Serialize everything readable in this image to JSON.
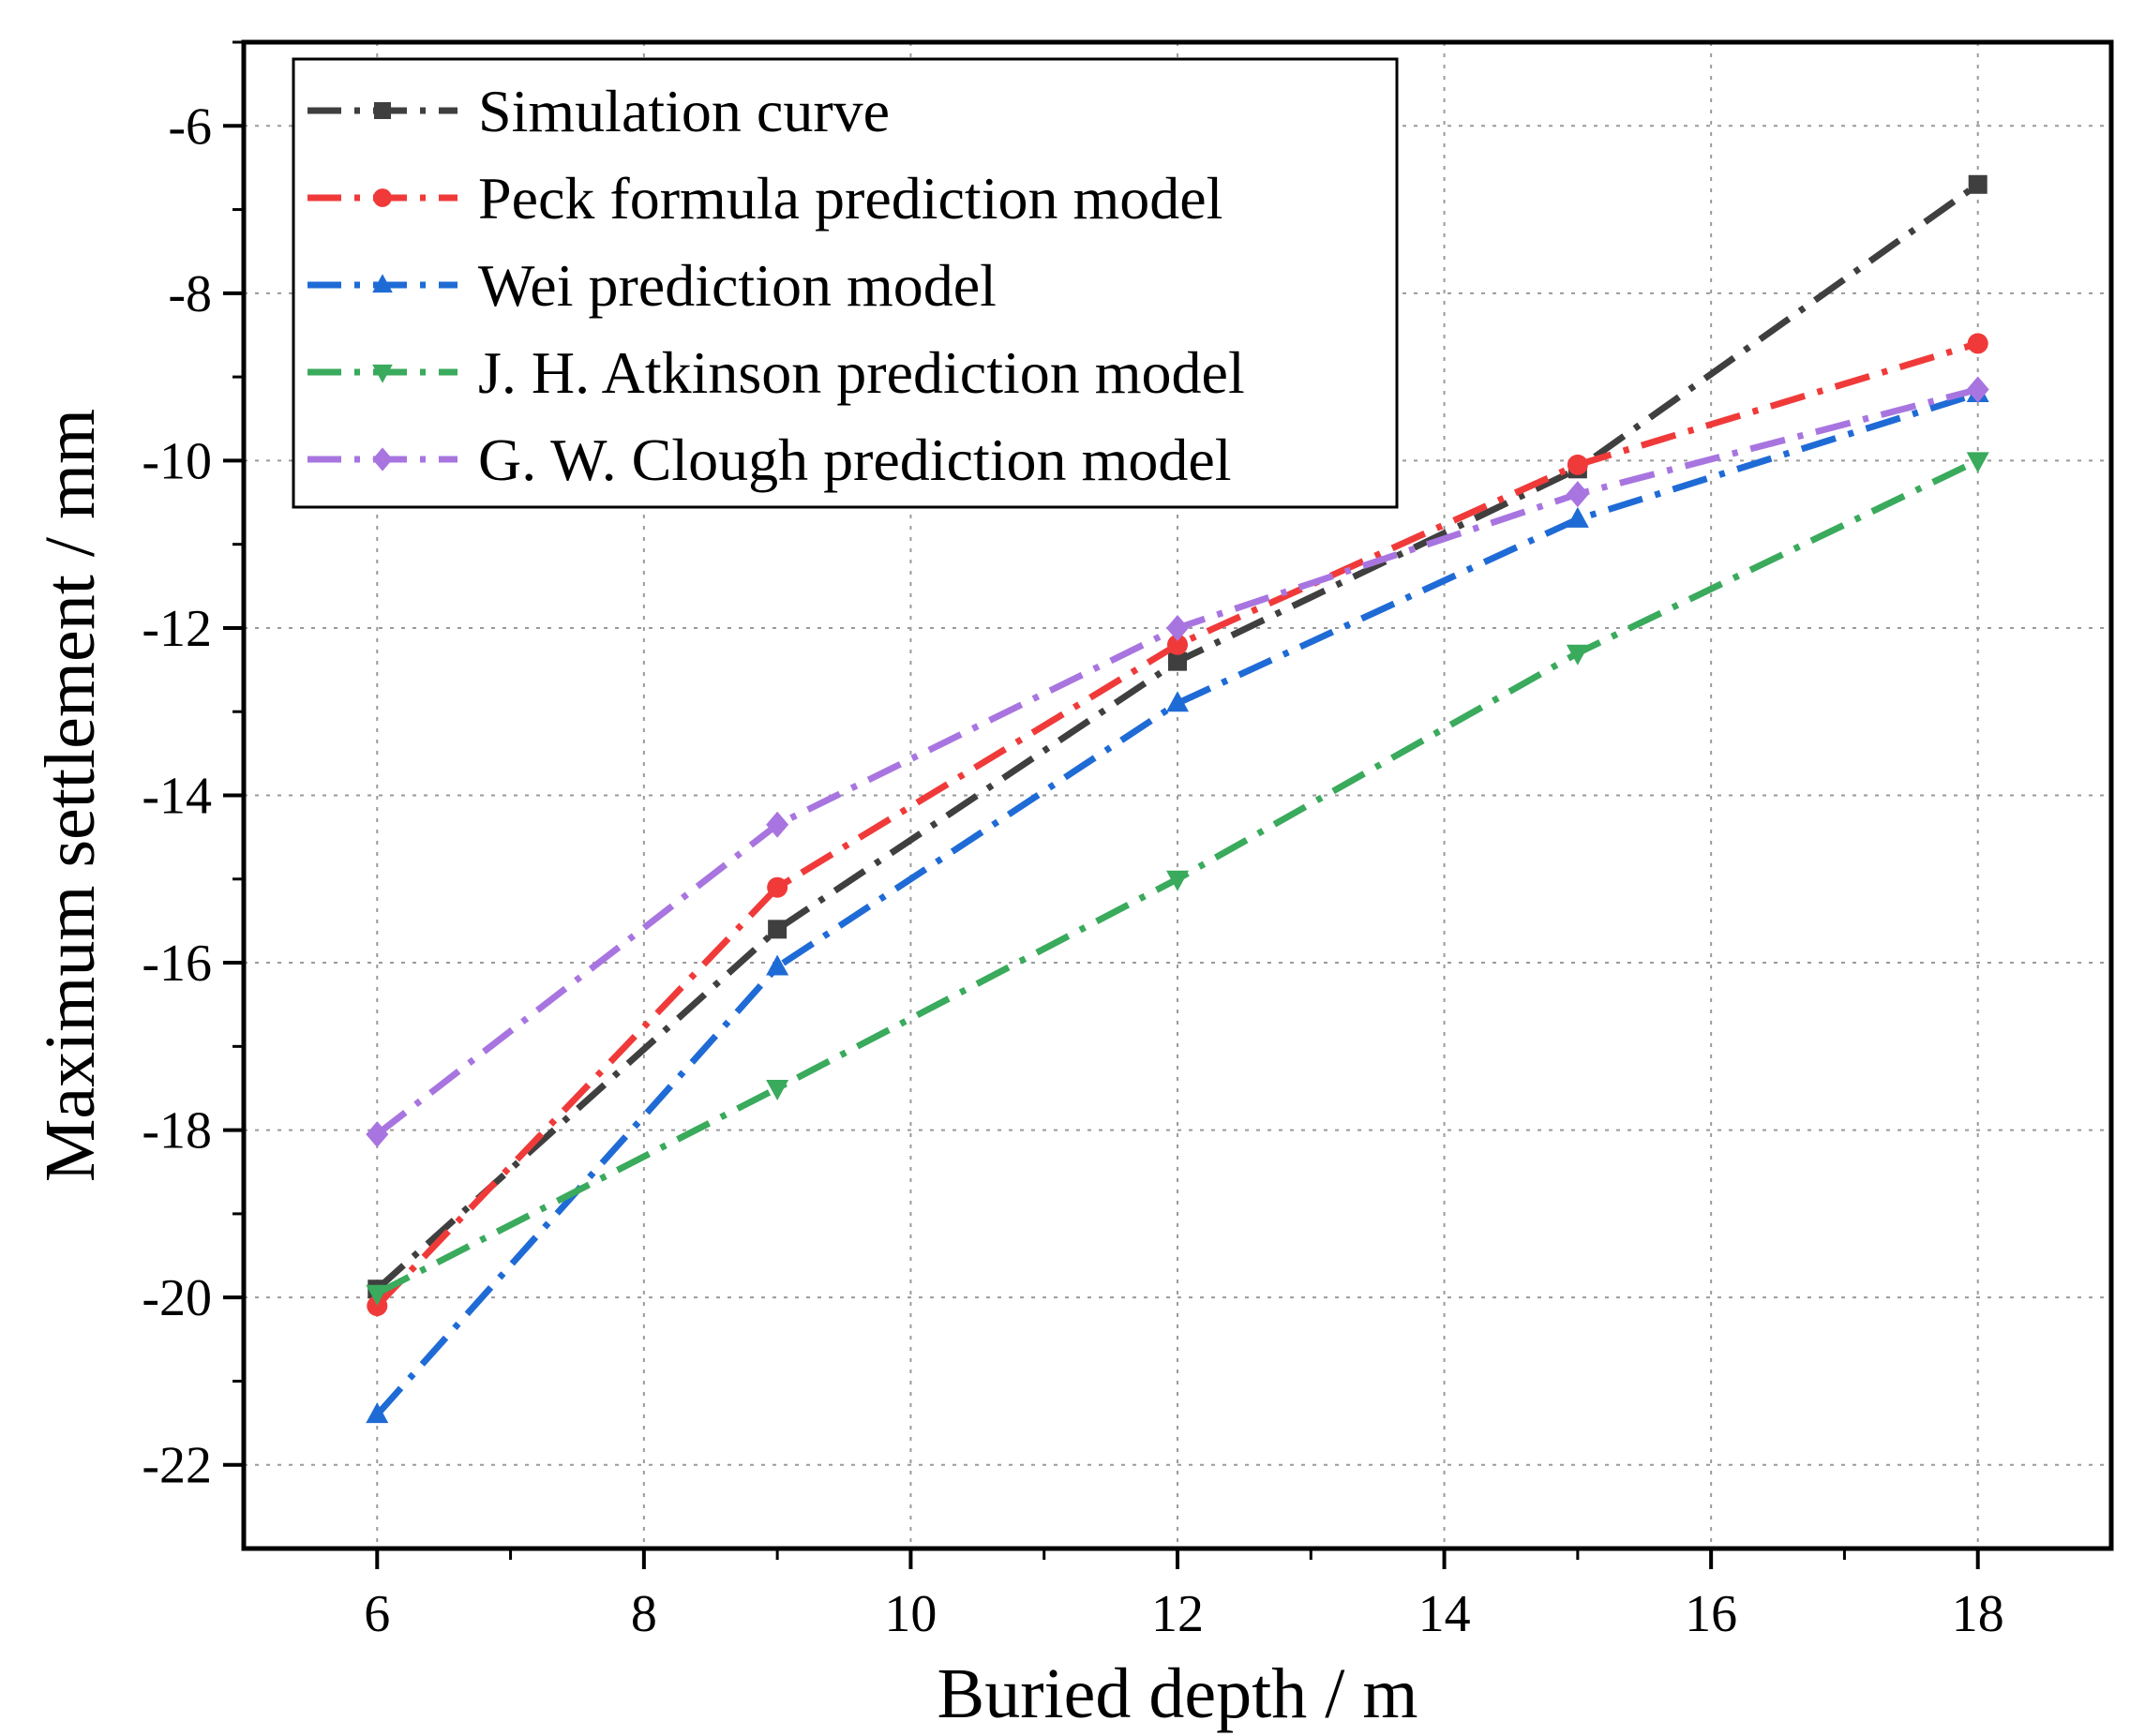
{
  "chart_data": {
    "type": "line",
    "title": "",
    "xlabel": "Buried depth / m",
    "ylabel": "Maximum settlement / mm",
    "x": [
      6,
      9,
      12,
      15,
      18
    ],
    "xlim": [
      5,
      19
    ],
    "ylim": [
      -23,
      -5
    ],
    "xticks": [
      6,
      8,
      10,
      12,
      14,
      16,
      18
    ],
    "yticks": [
      -22,
      -20,
      -18,
      -16,
      -14,
      -12,
      -10,
      -8,
      -6
    ],
    "xtick_labels": [
      "6",
      "8",
      "10",
      "12",
      "14",
      "16",
      "18"
    ],
    "ytick_labels": [
      "-22",
      "-20",
      "-18",
      "-16",
      "-14",
      "-12",
      "-10",
      "-8",
      "-6"
    ],
    "grid": true,
    "legend_position": "top-left",
    "series": [
      {
        "name": "Simulation curve",
        "color": "#3f3f3f",
        "marker": "square",
        "values": [
          -19.9,
          -15.6,
          -12.4,
          -10.1,
          -6.7
        ]
      },
      {
        "name": "Peck formula prediction model",
        "color": "#f03a3a",
        "marker": "circle",
        "values": [
          -20.1,
          -15.1,
          -12.2,
          -10.05,
          -8.6
        ]
      },
      {
        "name": "Wei prediction model",
        "color": "#1f6bd6",
        "marker": "triangle-up",
        "values": [
          -21.4,
          -16.05,
          -12.9,
          -10.7,
          -9.2
        ]
      },
      {
        "name": "J. H. Atkinson prediction model",
        "color": "#3aaa5c",
        "marker": "triangle-down",
        "values": [
          -19.95,
          -17.5,
          -15.0,
          -12.3,
          -10.0
        ]
      },
      {
        "name": "G. W. Clough prediction model",
        "color": "#a875e0",
        "marker": "diamond",
        "values": [
          -18.05,
          -14.35,
          -12.0,
          -10.4,
          -9.15
        ]
      }
    ]
  }
}
